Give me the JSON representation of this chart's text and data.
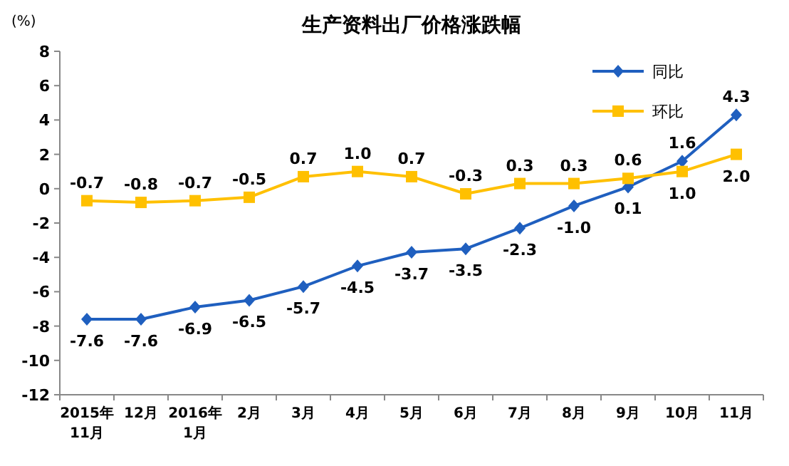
{
  "chart_data": {
    "type": "line",
    "title": "生产资料出厂价格涨跌幅",
    "ylabel": "(%)",
    "categories": [
      "2015年\n11月",
      "12月",
      "2016年\n1月",
      "2月",
      "3月",
      "4月",
      "5月",
      "6月",
      "7月",
      "8月",
      "9月",
      "10月",
      "11月"
    ],
    "series": [
      {
        "name": "同比",
        "color": "#1f5fbf",
        "marker": "diamond",
        "values": [
          -7.6,
          -7.6,
          -6.9,
          -6.5,
          -5.7,
          -4.5,
          -3.7,
          -3.5,
          -2.3,
          -1.0,
          0.1,
          1.6,
          4.3
        ],
        "value_labels": [
          "-7.6",
          "-7.6",
          "-6.9",
          "-6.5",
          "-5.7",
          "-4.5",
          "-3.7",
          "-3.5",
          "-2.3",
          "-1.0",
          "0.1",
          "1.6",
          "4.3"
        ]
      },
      {
        "name": "环比",
        "color": "#ffc000",
        "marker": "square",
        "values": [
          -0.7,
          -0.8,
          -0.7,
          -0.5,
          0.7,
          1.0,
          0.7,
          -0.3,
          0.3,
          0.3,
          0.6,
          1.0,
          2.0
        ],
        "value_labels": [
          "-0.7",
          "-0.8",
          "-0.7",
          "-0.5",
          "0.7",
          "1.0",
          "0.7",
          "-0.3",
          "0.3",
          "0.3",
          "0.6",
          "1.0",
          "2.0"
        ]
      }
    ],
    "ylim": [
      -12,
      8
    ],
    "yticks": [
      -12,
      -10,
      -8,
      -6,
      -4,
      -2,
      0,
      2,
      4,
      6,
      8
    ],
    "legend": "top right"
  }
}
